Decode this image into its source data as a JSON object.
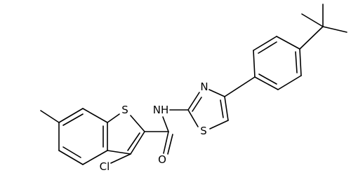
{
  "atoms": [
    {
      "label": "S"
    },
    {
      "label": "NH"
    },
    {
      "label": "N"
    },
    {
      "label": "S"
    },
    {
      "label": "O"
    },
    {
      "label": "Cl"
    }
  ]
}
